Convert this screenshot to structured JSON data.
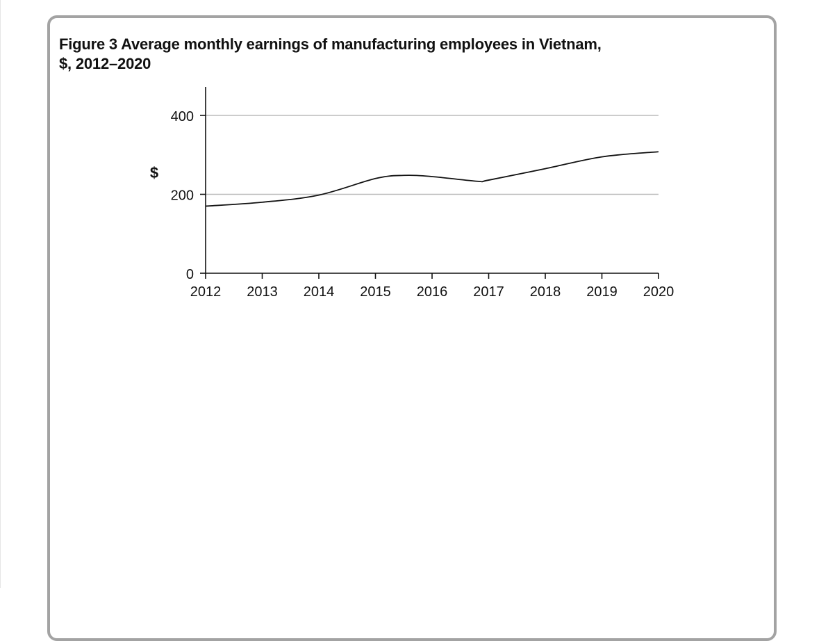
{
  "figure": {
    "title_line1": "Figure 3 Average monthly earnings of manufacturing employees in Vietnam,",
    "title_line2": "$, 2012–2020"
  },
  "chart_data": {
    "type": "line",
    "title": "Figure 3 Average monthly earnings of manufacturing employees in Vietnam, $, 2012–2020",
    "xlabel": "",
    "ylabel": "$",
    "x_ticks": [
      "2012",
      "2013",
      "2014",
      "2015",
      "2016",
      "2017",
      "2018",
      "2019",
      "2020"
    ],
    "y_ticks": [
      0,
      200,
      400
    ],
    "xlim": [
      2012,
      2020
    ],
    "ylim": [
      0,
      470
    ],
    "grid": "horizontal at 200 and 400",
    "series": [
      {
        "x": [
          2012,
          2013,
          2014,
          2015,
          2015.5,
          2016,
          2016.8,
          2017,
          2018,
          2019,
          2020
        ],
        "values": [
          170,
          180,
          198,
          240,
          248,
          245,
          233,
          236,
          265,
          295,
          308
        ]
      }
    ],
    "colors": {
      "line": "#111111",
      "grid": "#bbbbbb",
      "axis": "#111111",
      "frame": "#a3a3a3"
    }
  }
}
